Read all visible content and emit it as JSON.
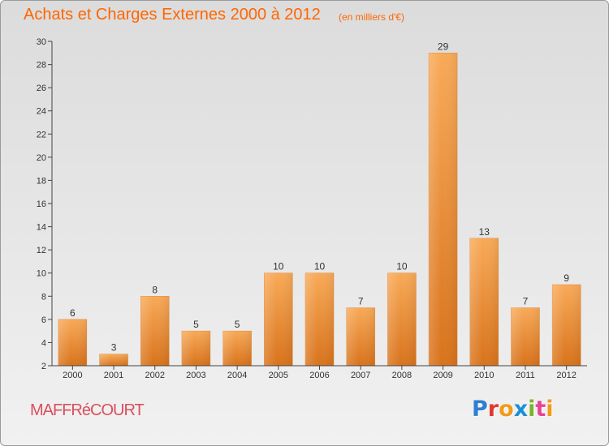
{
  "page": {
    "title": "Achats et Charges Externes 2000 à 2012",
    "unit_note": "(en milliers d'€)",
    "town": "MAFFRéCOURT",
    "brand": {
      "text": "Proxiti",
      "letter_colors": [
        "#2f7fd0",
        "#e03a2e",
        "#f39a1a",
        "#1a8fd8",
        "#7ab32e",
        "#e64494",
        "#f39a1a"
      ]
    }
  },
  "chart_data": {
    "type": "bar",
    "categories": [
      "2000",
      "2001",
      "2002",
      "2003",
      "2004",
      "2005",
      "2006",
      "2007",
      "2008",
      "2009",
      "2010",
      "2011",
      "2012"
    ],
    "values": [
      6,
      3,
      8,
      5,
      5,
      10,
      10,
      7,
      10,
      29,
      13,
      7,
      9
    ],
    "data_labels": [
      "6",
      "3",
      "8",
      "5",
      "5",
      "10",
      "10",
      "7",
      "10",
      "29",
      "13",
      "7",
      "9"
    ],
    "ylim": [
      2,
      30
    ],
    "yticks": [
      2,
      4,
      6,
      8,
      10,
      12,
      14,
      16,
      18,
      20,
      22,
      24,
      26,
      28,
      30
    ],
    "grid": false,
    "colors": {
      "bar_light": "#f8aa58",
      "bar_dark": "#d8731c",
      "axis": "#444444",
      "title": "#ff6600",
      "town": "#d94f5e"
    }
  }
}
